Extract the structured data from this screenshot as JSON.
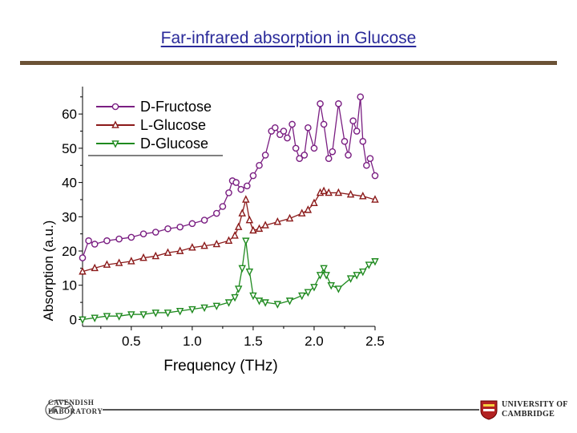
{
  "slide": {
    "title": "Far-infrared absorption in Glucose"
  },
  "logos": {
    "cavendish_line1": "CAVENDISH",
    "cavendish_line2": "LABORATORY",
    "cambridge_line1": "UNIVERSITY OF",
    "cambridge_line2": "CAMBRIDGE"
  },
  "chart_data": {
    "type": "line",
    "title": "",
    "xlabel": "Frequency (THz)",
    "ylabel": "Absorption (a.u.)",
    "xlim": [
      0.1,
      2.5
    ],
    "ylim": [
      -2,
      68
    ],
    "xticks": [
      0.5,
      1.0,
      1.5,
      2.0,
      2.5
    ],
    "xtick_labels": [
      "0.5",
      "1.0",
      "1.5",
      "2.0",
      "2.5"
    ],
    "yticks": [
      0,
      10,
      20,
      30,
      40,
      50,
      60
    ],
    "ytick_labels": [
      "0",
      "10",
      "20",
      "30",
      "40",
      "50",
      "60"
    ],
    "grid": false,
    "legend": "top-left",
    "series": [
      {
        "name": "D-Fructose",
        "color": "#7a1e82",
        "marker": "circle",
        "x": [
          0.1,
          0.15,
          0.2,
          0.3,
          0.4,
          0.5,
          0.6,
          0.7,
          0.8,
          0.9,
          1.0,
          1.1,
          1.2,
          1.25,
          1.3,
          1.33,
          1.36,
          1.4,
          1.45,
          1.5,
          1.55,
          1.6,
          1.65,
          1.68,
          1.72,
          1.75,
          1.78,
          1.82,
          1.85,
          1.88,
          1.92,
          1.95,
          2.0,
          2.05,
          2.08,
          2.12,
          2.15,
          2.2,
          2.25,
          2.28,
          2.32,
          2.35,
          2.38,
          2.4,
          2.43,
          2.46,
          2.5
        ],
        "y": [
          18,
          23,
          22,
          23,
          23.5,
          24,
          25,
          25.5,
          26.5,
          27,
          28,
          29,
          31,
          33,
          37,
          40.5,
          40,
          38,
          39,
          42,
          45,
          48,
          55,
          56,
          54,
          55,
          53,
          57,
          50,
          47,
          48,
          56,
          50,
          63,
          57,
          47,
          49,
          63,
          52,
          48,
          58,
          55,
          65,
          52,
          45,
          47,
          42
        ]
      },
      {
        "name": "L-Glucose",
        "color": "#8b1a1a",
        "marker": "triangle-up",
        "x": [
          0.1,
          0.2,
          0.3,
          0.4,
          0.5,
          0.6,
          0.7,
          0.8,
          0.9,
          1.0,
          1.1,
          1.2,
          1.3,
          1.35,
          1.38,
          1.41,
          1.44,
          1.47,
          1.5,
          1.55,
          1.6,
          1.7,
          1.8,
          1.9,
          1.95,
          2.0,
          2.05,
          2.08,
          2.12,
          2.2,
          2.3,
          2.4,
          2.5
        ],
        "y": [
          14,
          15,
          16,
          16.5,
          17,
          18,
          18.5,
          19.5,
          20,
          21,
          21.5,
          22,
          23,
          24.5,
          27,
          31,
          35,
          29,
          26,
          26.5,
          27.5,
          28.5,
          29.5,
          31,
          32,
          34,
          37,
          37.5,
          37,
          37,
          36.5,
          36,
          35
        ]
      },
      {
        "name": "D-Glucose",
        "color": "#1f8a1f",
        "marker": "triangle-down",
        "x": [
          0.1,
          0.2,
          0.3,
          0.4,
          0.5,
          0.6,
          0.7,
          0.8,
          0.9,
          1.0,
          1.1,
          1.2,
          1.3,
          1.35,
          1.38,
          1.41,
          1.44,
          1.47,
          1.5,
          1.55,
          1.6,
          1.7,
          1.8,
          1.9,
          1.95,
          2.0,
          2.05,
          2.08,
          2.1,
          2.14,
          2.2,
          2.3,
          2.35,
          2.4,
          2.45,
          2.5
        ],
        "y": [
          0,
          0.5,
          1,
          1,
          1.5,
          1.5,
          2,
          2,
          2.5,
          3,
          3.5,
          4,
          5,
          6.5,
          9,
          15,
          23,
          14,
          7,
          5.5,
          5,
          4.5,
          5.5,
          7,
          8,
          9.5,
          13,
          15,
          13,
          10,
          9,
          12,
          13,
          14,
          16,
          17
        ]
      }
    ]
  }
}
